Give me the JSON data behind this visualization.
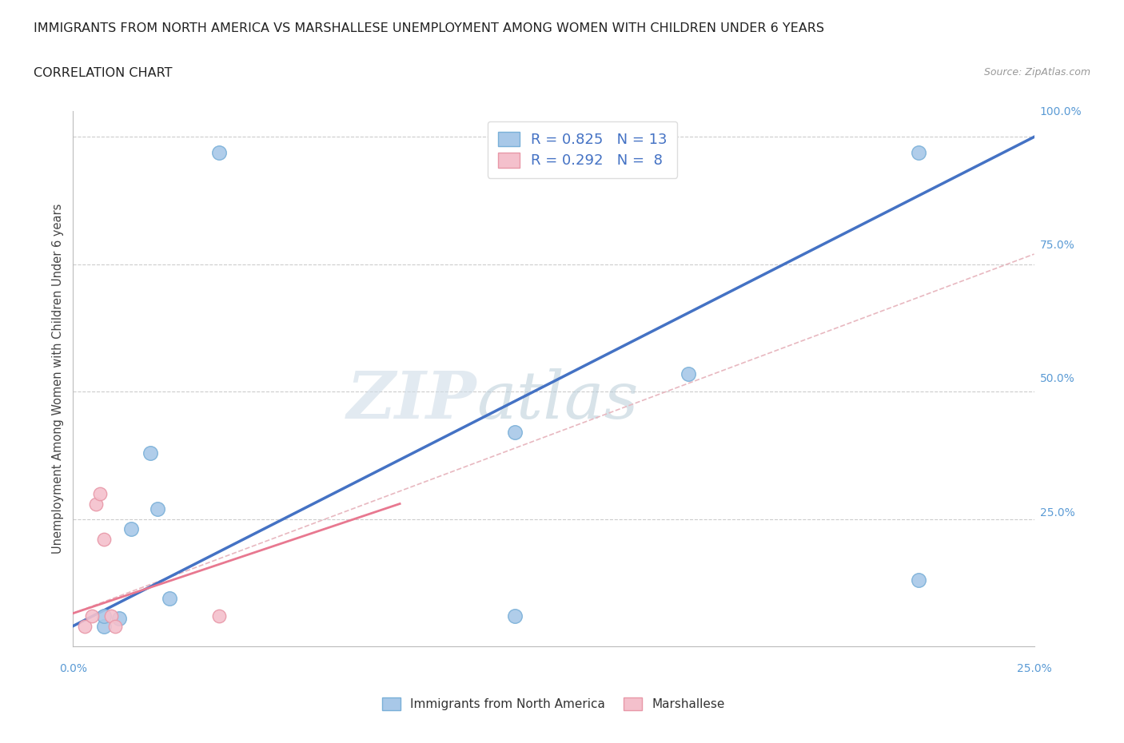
{
  "title_line1": "IMMIGRANTS FROM NORTH AMERICA VS MARSHALLESE UNEMPLOYMENT AMONG WOMEN WITH CHILDREN UNDER 6 YEARS",
  "title_line2": "CORRELATION CHART",
  "source_text": "Source: ZipAtlas.com",
  "xlabel_bottom_left": "0.0%",
  "xlabel_bottom_right": "25.0%",
  "ylabel_right": [
    "25.0%",
    "50.0%",
    "75.0%",
    "100.0%"
  ],
  "ylabel_left": "Unemployment Among Women with Children Under 6 years",
  "legend_blue_label": "Immigrants from North America",
  "legend_pink_label": "Marshallese",
  "R_blue": 0.825,
  "N_blue": 13,
  "R_pink": 0.292,
  "N_pink": 8,
  "blue_scatter_x": [
    0.008,
    0.008,
    0.012,
    0.015,
    0.02,
    0.022,
    0.025,
    0.038,
    0.115,
    0.115,
    0.16,
    0.22,
    0.22
  ],
  "blue_scatter_y": [
    0.04,
    0.06,
    0.055,
    0.23,
    0.38,
    0.27,
    0.095,
    0.97,
    0.42,
    0.06,
    0.535,
    0.97,
    0.13
  ],
  "pink_scatter_x": [
    0.003,
    0.005,
    0.006,
    0.007,
    0.008,
    0.01,
    0.011,
    0.038
  ],
  "pink_scatter_y": [
    0.04,
    0.06,
    0.28,
    0.3,
    0.21,
    0.06,
    0.04,
    0.06
  ],
  "blue_line_x": [
    0.0,
    0.25
  ],
  "blue_line_y": [
    0.04,
    1.0
  ],
  "pink_line_x": [
    0.0,
    0.085
  ],
  "pink_line_y": [
    0.065,
    0.28
  ],
  "pink_dashed_line_x": [
    0.0,
    0.25
  ],
  "pink_dashed_line_y": [
    0.065,
    0.77
  ],
  "blue_color": "#a8c8e8",
  "blue_edge_color": "#7ab0d8",
  "pink_color": "#f4c0cc",
  "pink_edge_color": "#e898a8",
  "blue_line_color": "#4472c4",
  "pink_solid_line_color": "#e87890",
  "pink_dashed_line_color": "#e8b8c0",
  "grid_color": "#cccccc",
  "watermark_color": "#d0dde8",
  "background_color": "#ffffff",
  "xlim": [
    0.0,
    0.25
  ],
  "ylim": [
    0.0,
    1.05
  ],
  "right_axis_color": "#5b9bd5",
  "title_color": "#222222",
  "source_color": "#999999",
  "ylabel_color": "#444444"
}
